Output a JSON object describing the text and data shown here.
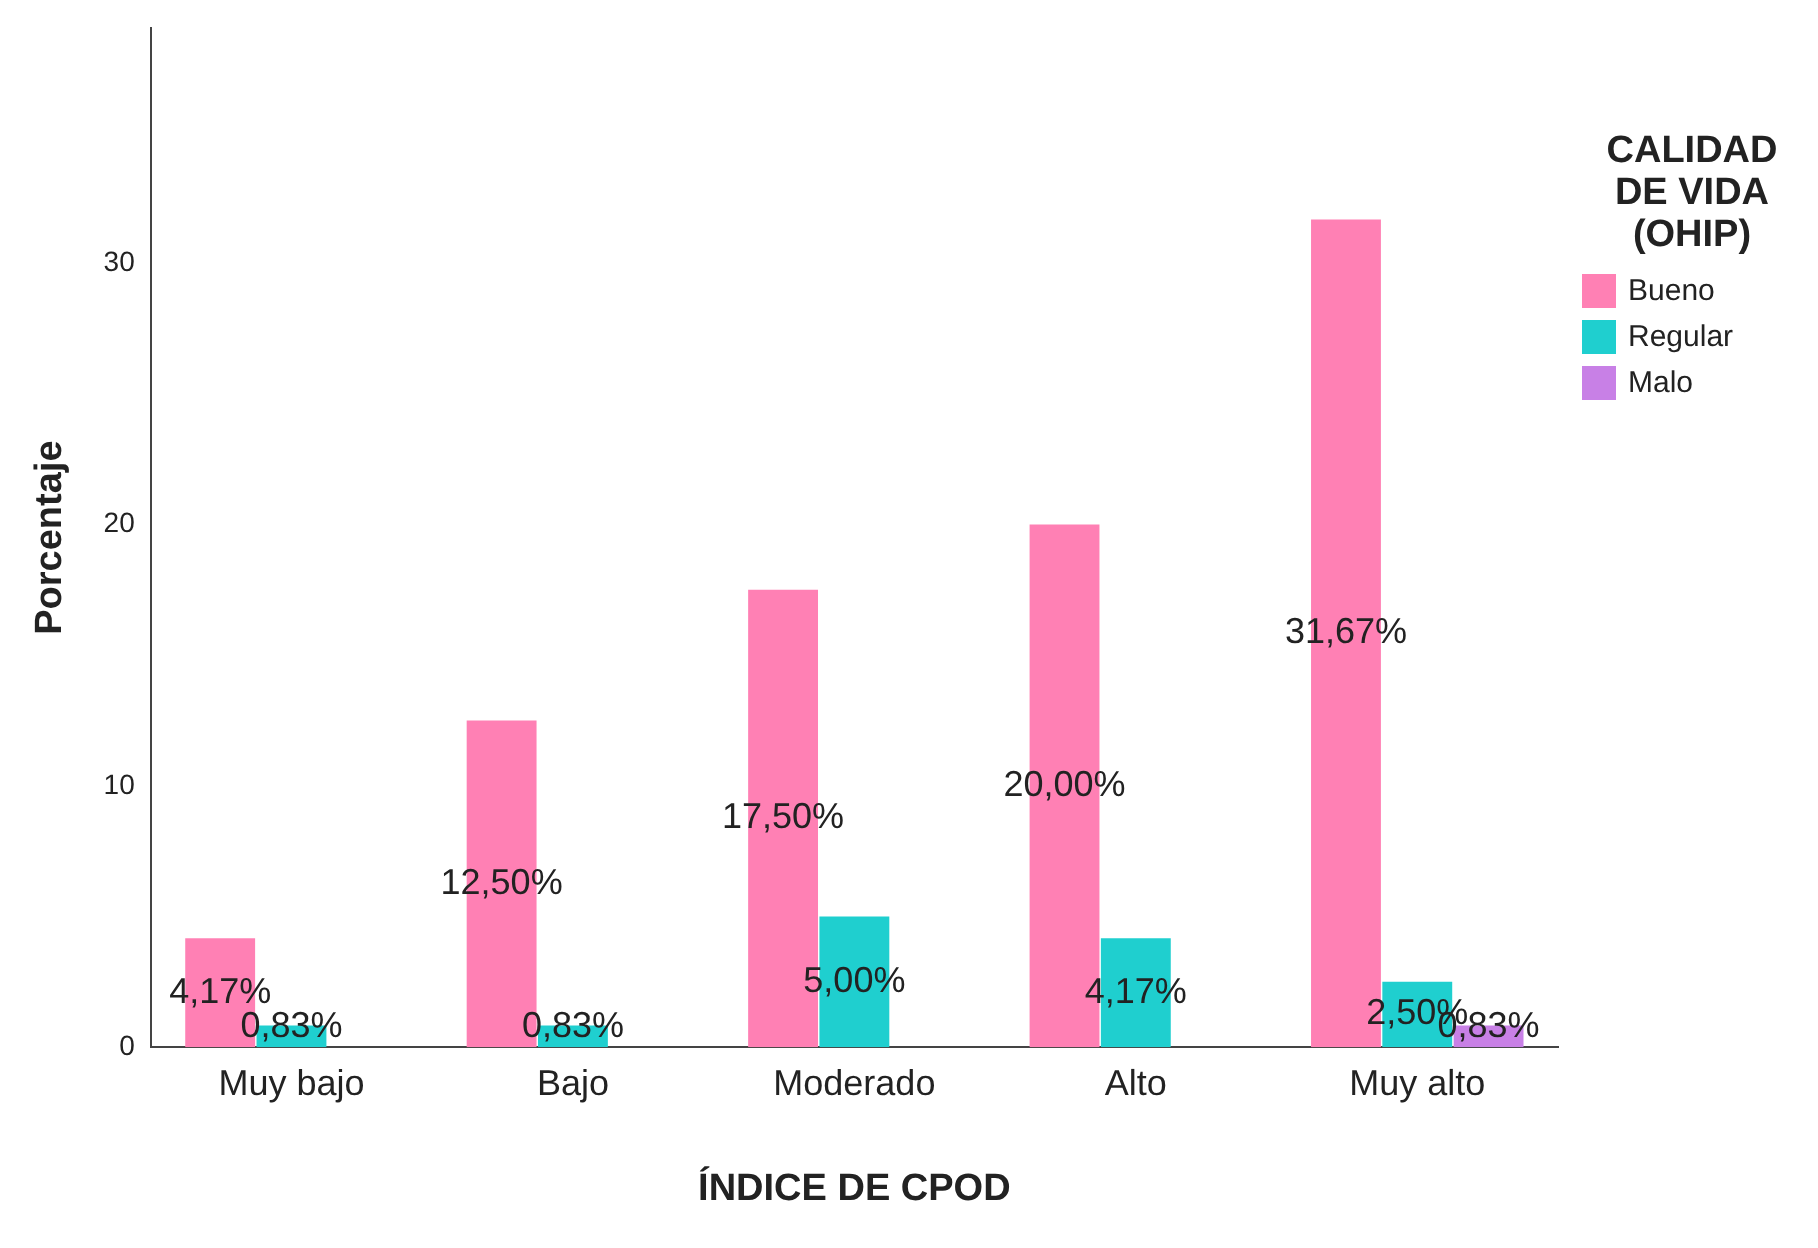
{
  "chart_data": {
    "type": "bar",
    "xlabel": "ÍNDICE DE CPOD",
    "ylabel": "Porcentaje",
    "legend_title": "CALIDAD DE VIDA (OHIP)",
    "legend": "right",
    "categories": [
      "Muy bajo",
      "Bajo",
      "Moderado",
      "Alto",
      "Muy alto"
    ],
    "series": [
      {
        "name": "Bueno",
        "color": "#ff80b4",
        "values": [
          4.17,
          12.5,
          17.5,
          20,
          31.67
        ],
        "value_labels": [
          "4,17%",
          "12,50%",
          "17,50%",
          "20,00%",
          "31,67%"
        ]
      },
      {
        "name": "Regular",
        "color": "#1fcfcf",
        "values": [
          0.83,
          0.83,
          5,
          4.17,
          2.5
        ],
        "value_labels": [
          "0,83%",
          "0,83%",
          "5,00%",
          "4,17%",
          "2,50%"
        ]
      },
      {
        "name": "Malo",
        "color": "#c880e6",
        "values": [
          null,
          null,
          null,
          null,
          0.83
        ],
        "value_labels": [
          null,
          null,
          null,
          null,
          "0,83%"
        ]
      }
    ],
    "ylim": [
      0,
      39
    ],
    "yticks": [
      0,
      10,
      20,
      30
    ],
    "grid": false
  }
}
